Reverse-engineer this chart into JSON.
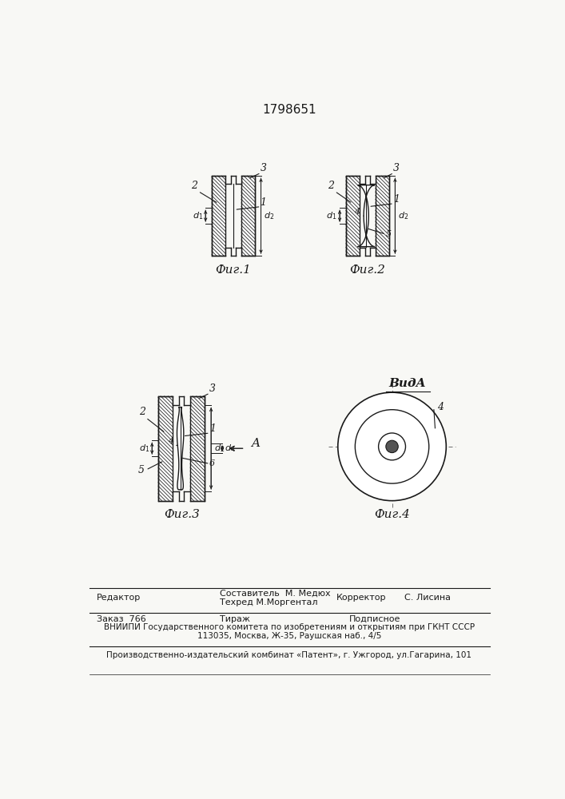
{
  "patent_number": "1798651",
  "fig1_label": "Фиг.1",
  "fig2_label": "Фиг.2",
  "fig3_label": "Фиг.3",
  "fig4_label": "Фиг.4",
  "vid_a_label": "ВидA",
  "footer_editor": "Редактор",
  "footer_comp": "Составитель  М. Медюх",
  "footer_tech": "Техред М.Моргентал",
  "footer_corr": "Корректор",
  "footer_corr_name": "С. Лисина",
  "footer_order": "Заказ  766",
  "footer_print": "Тираж",
  "footer_sub": "Подписное",
  "footer_vnipi": "ВНИИПИ Государственного комитета по изобретениям и открытиям при ГКНТ СССР",
  "footer_addr": "113035, Москва, Ж-35, Раушская наб., 4/5",
  "footer_patent": "Производственно-издательский комбинат «Патент», г. Ужгород, ул.Гагарина, 101",
  "bg_color": "#f8f8f5",
  "line_color": "#1a1a1a"
}
